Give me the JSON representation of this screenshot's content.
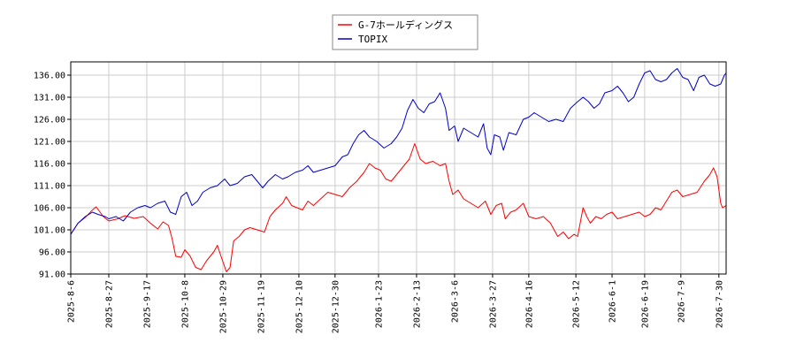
{
  "chart_data": {
    "type": "line",
    "title": "",
    "xlabel": "",
    "ylabel": "",
    "ylim": [
      91,
      139
    ],
    "yticks": [
      "91.00",
      "96.00",
      "101.00",
      "106.00",
      "111.00",
      "116.00",
      "121.00",
      "126.00",
      "131.00",
      "136.00"
    ],
    "grid": true,
    "legend_position": "top-center",
    "x_start": "2025-8-6",
    "x_end": "2026-8-3",
    "xticks": [
      "2025-8-6",
      "2025-8-27",
      "2025-9-17",
      "2025-10-8",
      "2025-10-29",
      "2025-11-19",
      "2025-12-10",
      "2025-12-30",
      "2026-1-23",
      "2026-2-13",
      "2026-3-6",
      "2026-3-27",
      "2026-4-16",
      "2026-5-12",
      "2026-6-1",
      "2026-6-19",
      "2026-7-9",
      "2026-7-30"
    ],
    "series": [
      {
        "name": "G-7ホールディングス",
        "color": "#ff0000",
        "points": [
          [
            "2025-8-6",
            100.0
          ],
          [
            "2025-8-10",
            102.5
          ],
          [
            "2025-8-14",
            103.8
          ],
          [
            "2025-8-18",
            105.5
          ],
          [
            "2025-8-20",
            106.2
          ],
          [
            "2025-8-24",
            104.0
          ],
          [
            "2025-8-27",
            103.0
          ],
          [
            "2025-9-1",
            103.5
          ],
          [
            "2025-9-5",
            104.2
          ],
          [
            "2025-9-10",
            103.6
          ],
          [
            "2025-9-15",
            104.0
          ],
          [
            "2025-9-19",
            102.5
          ],
          [
            "2025-9-23",
            101.2
          ],
          [
            "2025-9-26",
            102.8
          ],
          [
            "2025-9-29",
            102.0
          ],
          [
            "2025-10-1",
            99.0
          ],
          [
            "2025-10-3",
            95.0
          ],
          [
            "2025-10-6",
            94.8
          ],
          [
            "2025-10-8",
            96.5
          ],
          [
            "2025-10-11",
            95.0
          ],
          [
            "2025-10-14",
            92.5
          ],
          [
            "2025-10-17",
            92.0
          ],
          [
            "2025-10-20",
            94.0
          ],
          [
            "2025-10-24",
            96.0
          ],
          [
            "2025-10-26",
            97.5
          ],
          [
            "2025-10-28",
            95.0
          ],
          [
            "2025-10-31",
            91.5
          ],
          [
            "2025-11-2",
            92.5
          ],
          [
            "2025-11-4",
            98.5
          ],
          [
            "2025-11-7",
            99.5
          ],
          [
            "2025-11-10",
            101.0
          ],
          [
            "2025-11-13",
            101.5
          ],
          [
            "2025-11-17",
            101.0
          ],
          [
            "2025-11-21",
            100.5
          ],
          [
            "2025-11-24",
            104.0
          ],
          [
            "2025-11-27",
            105.5
          ],
          [
            "2025-12-1",
            107.0
          ],
          [
            "2025-12-3",
            108.5
          ],
          [
            "2025-12-6",
            106.5
          ],
          [
            "2025-12-9",
            106.0
          ],
          [
            "2025-12-12",
            105.5
          ],
          [
            "2025-12-15",
            107.5
          ],
          [
            "2025-12-18",
            106.5
          ],
          [
            "2025-12-22",
            108.0
          ],
          [
            "2025-12-26",
            109.5
          ],
          [
            "2025-12-30",
            109.0
          ],
          [
            "2026-1-3",
            108.5
          ],
          [
            "2026-1-7",
            110.5
          ],
          [
            "2026-1-11",
            112.0
          ],
          [
            "2026-1-15",
            114.0
          ],
          [
            "2026-1-18",
            116.0
          ],
          [
            "2026-1-21",
            115.0
          ],
          [
            "2026-1-24",
            114.5
          ],
          [
            "2026-1-27",
            112.5
          ],
          [
            "2026-1-30",
            112.0
          ],
          [
            "2026-2-2",
            113.5
          ],
          [
            "2026-2-5",
            115.0
          ],
          [
            "2026-2-9",
            117.0
          ],
          [
            "2026-2-12",
            120.5
          ],
          [
            "2026-2-15",
            117.0
          ],
          [
            "2026-2-18",
            116.0
          ],
          [
            "2026-2-22",
            116.5
          ],
          [
            "2026-2-26",
            115.5
          ],
          [
            "2026-3-1",
            116.0
          ],
          [
            "2026-3-3",
            112.0
          ],
          [
            "2026-3-5",
            109.0
          ],
          [
            "2026-3-8",
            110.0
          ],
          [
            "2026-3-11",
            108.0
          ],
          [
            "2026-3-15",
            107.0
          ],
          [
            "2026-3-19",
            106.0
          ],
          [
            "2026-3-23",
            107.5
          ],
          [
            "2026-3-26",
            104.5
          ],
          [
            "2026-3-29",
            106.5
          ],
          [
            "2026-4-1",
            107.0
          ],
          [
            "2026-4-3",
            103.5
          ],
          [
            "2026-4-6",
            105.0
          ],
          [
            "2026-4-9",
            105.5
          ],
          [
            "2026-4-13",
            107.0
          ],
          [
            "2026-4-16",
            104.0
          ],
          [
            "2026-4-20",
            103.5
          ],
          [
            "2026-4-24",
            104.0
          ],
          [
            "2026-4-28",
            102.5
          ],
          [
            "2026-5-2",
            99.5
          ],
          [
            "2026-5-5",
            100.5
          ],
          [
            "2026-5-8",
            99.0
          ],
          [
            "2026-5-11",
            100.0
          ],
          [
            "2026-5-13",
            99.5
          ],
          [
            "2026-5-16",
            106.0
          ],
          [
            "2026-5-18",
            104.0
          ],
          [
            "2026-5-20",
            102.5
          ],
          [
            "2026-5-23",
            104.0
          ],
          [
            "2026-5-26",
            103.5
          ],
          [
            "2026-5-29",
            104.5
          ],
          [
            "2026-6-1",
            105.0
          ],
          [
            "2026-6-4",
            103.5
          ],
          [
            "2026-6-8",
            104.0
          ],
          [
            "2026-6-12",
            104.5
          ],
          [
            "2026-6-16",
            105.0
          ],
          [
            "2026-6-19",
            104.0
          ],
          [
            "2026-6-22",
            104.5
          ],
          [
            "2026-6-25",
            106.0
          ],
          [
            "2026-6-28",
            105.5
          ],
          [
            "2026-7-1",
            107.5
          ],
          [
            "2026-7-4",
            109.5
          ],
          [
            "2026-7-7",
            110.0
          ],
          [
            "2026-7-10",
            108.5
          ],
          [
            "2026-7-14",
            109.0
          ],
          [
            "2026-7-18",
            109.5
          ],
          [
            "2026-7-22",
            112.0
          ],
          [
            "2026-7-25",
            113.5
          ],
          [
            "2026-7-27",
            115.0
          ],
          [
            "2026-7-29",
            113.0
          ],
          [
            "2026-7-31",
            107.0
          ],
          [
            "2026-8-1",
            106.0
          ],
          [
            "2026-8-3",
            106.5
          ]
        ]
      },
      {
        "name": "TOPIX",
        "color": "#0000cc",
        "points": [
          [
            "2025-8-6",
            100.0
          ],
          [
            "2025-8-10",
            102.5
          ],
          [
            "2025-8-14",
            104.0
          ],
          [
            "2025-8-18",
            105.0
          ],
          [
            "2025-8-21",
            104.5
          ],
          [
            "2025-8-25",
            104.0
          ],
          [
            "2025-8-27",
            103.5
          ],
          [
            "2025-8-31",
            104.0
          ],
          [
            "2025-9-4",
            103.0
          ],
          [
            "2025-9-8",
            105.0
          ],
          [
            "2025-9-12",
            106.0
          ],
          [
            "2025-9-16",
            106.5
          ],
          [
            "2025-9-19",
            106.0
          ],
          [
            "2025-9-23",
            107.0
          ],
          [
            "2025-9-27",
            107.5
          ],
          [
            "2025-9-30",
            105.0
          ],
          [
            "2025-10-3",
            104.5
          ],
          [
            "2025-10-6",
            108.5
          ],
          [
            "2025-10-9",
            109.5
          ],
          [
            "2025-10-12",
            106.5
          ],
          [
            "2025-10-15",
            107.5
          ],
          [
            "2025-10-18",
            109.5
          ],
          [
            "2025-10-22",
            110.5
          ],
          [
            "2025-10-26",
            111.0
          ],
          [
            "2025-10-30",
            112.5
          ],
          [
            "2025-11-2",
            111.0
          ],
          [
            "2025-11-6",
            111.5
          ],
          [
            "2025-11-10",
            113.0
          ],
          [
            "2025-11-14",
            113.5
          ],
          [
            "2025-11-18",
            111.5
          ],
          [
            "2025-11-20",
            110.5
          ],
          [
            "2025-11-23",
            112.0
          ],
          [
            "2025-11-27",
            113.5
          ],
          [
            "2025-12-1",
            112.5
          ],
          [
            "2025-12-4",
            113.0
          ],
          [
            "2025-12-8",
            114.0
          ],
          [
            "2025-12-12",
            114.5
          ],
          [
            "2025-12-15",
            115.5
          ],
          [
            "2025-12-18",
            114.0
          ],
          [
            "2025-12-22",
            114.5
          ],
          [
            "2025-12-26",
            115.0
          ],
          [
            "2025-12-30",
            115.5
          ],
          [
            "2026-1-3",
            117.5
          ],
          [
            "2026-1-6",
            118.0
          ],
          [
            "2026-1-9",
            120.5
          ],
          [
            "2026-1-12",
            122.5
          ],
          [
            "2026-1-15",
            123.5
          ],
          [
            "2026-1-18",
            122.0
          ],
          [
            "2026-1-22",
            121.0
          ],
          [
            "2026-1-26",
            119.5
          ],
          [
            "2026-1-30",
            120.5
          ],
          [
            "2026-2-2",
            122.0
          ],
          [
            "2026-2-5",
            124.0
          ],
          [
            "2026-2-8",
            128.0
          ],
          [
            "2026-2-11",
            130.5
          ],
          [
            "2026-2-14",
            128.5
          ],
          [
            "2026-2-17",
            127.5
          ],
          [
            "2026-2-20",
            129.5
          ],
          [
            "2026-2-23",
            130.0
          ],
          [
            "2026-2-26",
            132.0
          ],
          [
            "2026-3-1",
            128.5
          ],
          [
            "2026-3-3",
            123.5
          ],
          [
            "2026-3-6",
            124.5
          ],
          [
            "2026-3-8",
            121.0
          ],
          [
            "2026-3-11",
            124.0
          ],
          [
            "2026-3-15",
            123.0
          ],
          [
            "2026-3-19",
            122.0
          ],
          [
            "2026-3-22",
            125.0
          ],
          [
            "2026-3-24",
            119.5
          ],
          [
            "2026-3-26",
            118.0
          ],
          [
            "2026-3-28",
            122.5
          ],
          [
            "2026-3-31",
            122.0
          ],
          [
            "2026-4-2",
            119.0
          ],
          [
            "2026-4-5",
            123.0
          ],
          [
            "2026-4-9",
            122.5
          ],
          [
            "2026-4-13",
            126.0
          ],
          [
            "2026-4-16",
            126.5
          ],
          [
            "2026-4-19",
            127.5
          ],
          [
            "2026-4-23",
            126.5
          ],
          [
            "2026-4-27",
            125.5
          ],
          [
            "2026-5-1",
            126.0
          ],
          [
            "2026-5-5",
            125.5
          ],
          [
            "2026-5-9",
            128.5
          ],
          [
            "2026-5-13",
            130.0
          ],
          [
            "2026-5-16",
            131.0
          ],
          [
            "2026-5-19",
            130.0
          ],
          [
            "2026-5-22",
            128.5
          ],
          [
            "2026-5-25",
            129.5
          ],
          [
            "2026-5-28",
            132.0
          ],
          [
            "2026-6-1",
            132.5
          ],
          [
            "2026-6-4",
            133.5
          ],
          [
            "2026-6-7",
            132.0
          ],
          [
            "2026-6-10",
            130.0
          ],
          [
            "2026-6-13",
            131.0
          ],
          [
            "2026-6-16",
            134.0
          ],
          [
            "2026-6-19",
            136.5
          ],
          [
            "2026-6-22",
            137.0
          ],
          [
            "2026-6-25",
            135.0
          ],
          [
            "2026-6-28",
            134.5
          ],
          [
            "2026-7-1",
            135.0
          ],
          [
            "2026-7-4",
            136.5
          ],
          [
            "2026-7-7",
            137.5
          ],
          [
            "2026-7-10",
            135.5
          ],
          [
            "2026-7-13",
            135.0
          ],
          [
            "2026-7-16",
            132.5
          ],
          [
            "2026-7-19",
            135.5
          ],
          [
            "2026-7-22",
            136.0
          ],
          [
            "2026-7-25",
            134.0
          ],
          [
            "2026-7-28",
            133.5
          ],
          [
            "2026-7-31",
            134.0
          ],
          [
            "2026-8-2",
            136.0
          ],
          [
            "2026-8-3",
            136.5
          ]
        ]
      }
    ]
  }
}
